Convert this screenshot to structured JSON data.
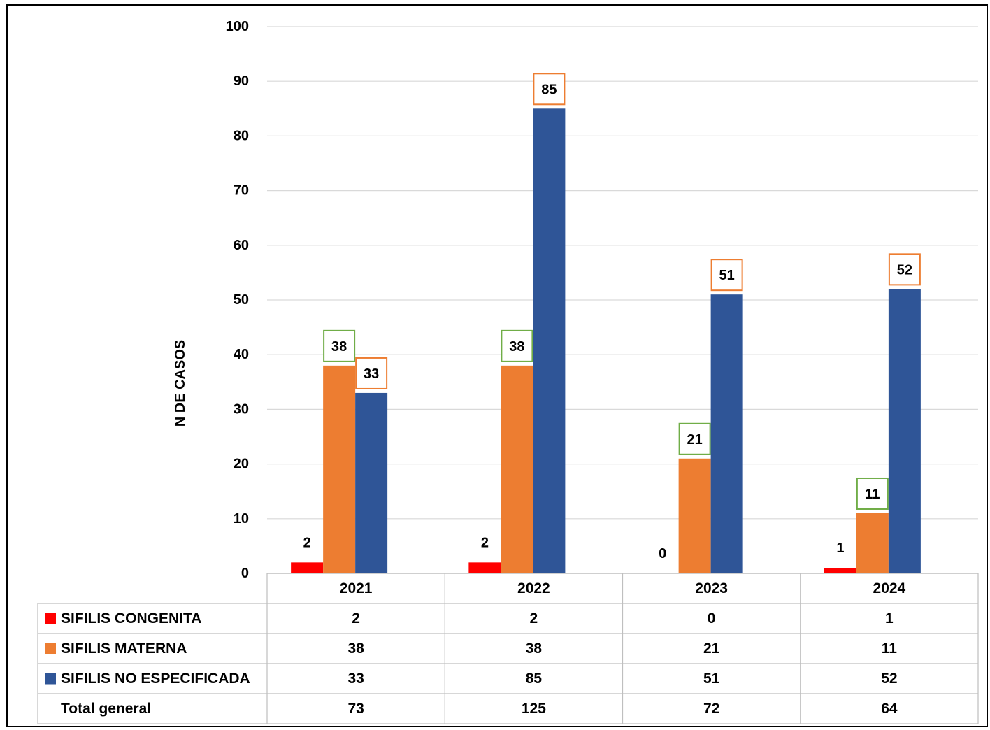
{
  "chart_data": {
    "type": "bar",
    "title": "",
    "xlabel": "",
    "ylabel": "N DE CASOS",
    "ylim": [
      0,
      100
    ],
    "yticks": [
      0,
      10,
      20,
      30,
      40,
      50,
      60,
      70,
      80,
      90,
      100
    ],
    "grid": true,
    "legend": "data-table",
    "categories": [
      "2021",
      "2022",
      "2023",
      "2024"
    ],
    "series": [
      {
        "name": "SIFILIS CONGENITA",
        "color": "#ff0000",
        "values": [
          2,
          2,
          0,
          1
        ],
        "label_box": "none"
      },
      {
        "name": "SIFILIS MATERNA",
        "color": "#ed7d31",
        "values": [
          38,
          38,
          21,
          11
        ],
        "label_box": "#70ad47"
      },
      {
        "name": "SIFILIS NO ESPECIFICADA",
        "color": "#2f5597",
        "values": [
          33,
          85,
          51,
          52
        ],
        "label_box": "#ed7d31"
      }
    ],
    "total_label": "Total general",
    "totals": [
      73,
      125,
      72,
      64
    ]
  }
}
